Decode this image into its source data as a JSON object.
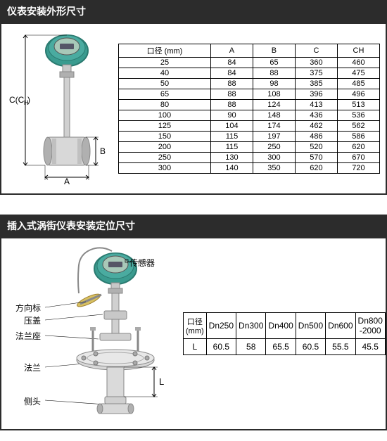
{
  "section1": {
    "title": "仪表安装外形尺寸",
    "diagram": {
      "label_c": "C(C",
      "label_c_sub": "H",
      "label_a": "A",
      "label_b": "B"
    },
    "table": {
      "headers": [
        "口径 (mm)",
        "A",
        "B",
        "C",
        "CH"
      ],
      "rows": [
        [
          "25",
          "84",
          "65",
          "360",
          "460"
        ],
        [
          "40",
          "84",
          "88",
          "375",
          "475"
        ],
        [
          "50",
          "88",
          "98",
          "385",
          "485"
        ],
        [
          "65",
          "88",
          "108",
          "396",
          "496"
        ],
        [
          "80",
          "88",
          "124",
          "413",
          "513"
        ],
        [
          "100",
          "90",
          "148",
          "436",
          "536"
        ],
        [
          "125",
          "104",
          "174",
          "462",
          "562"
        ],
        [
          "150",
          "115",
          "197",
          "486",
          "586"
        ],
        [
          "200",
          "115",
          "250",
          "520",
          "620"
        ],
        [
          "250",
          "130",
          "300",
          "570",
          "670"
        ],
        [
          "300",
          "140",
          "350",
          "620",
          "720"
        ]
      ]
    }
  },
  "section2": {
    "title": "插入式涡街仪表安装定位尺寸",
    "labels": {
      "sensor": "传感器",
      "direction": "方向标",
      "cap": "压盖",
      "flange_seat": "法兰座",
      "flange": "法兰",
      "side_head": "侧头",
      "dim_L": "L"
    },
    "table": {
      "header_label": "口径\n(mm)",
      "columns": [
        "Dn250",
        "Dn300",
        "Dn400",
        "Dn500",
        "Dn600",
        "Dn800\n-2000"
      ],
      "row_label": "L",
      "values": [
        "60.5",
        "58",
        "65.5",
        "60.5",
        "55.5",
        "45.5"
      ]
    }
  },
  "colors": {
    "header_bg": "#2c2c2c",
    "border": "#2c2c2c",
    "meter_body": "#3a9b8f",
    "meter_dark": "#2a7a70",
    "metal": "#c8c8c8",
    "metal_dark": "#888888",
    "display": "#a8c8b8"
  }
}
